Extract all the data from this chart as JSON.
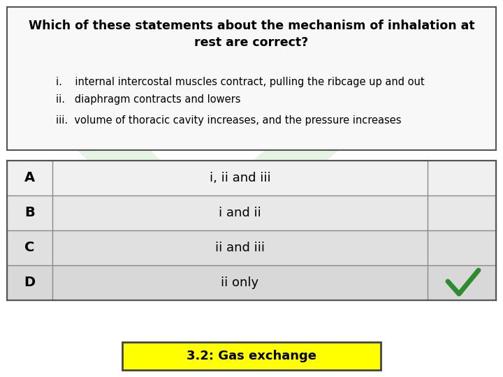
{
  "title_line1": "Which of these statements about the mechanism of inhalation at",
  "title_line2": "rest are correct?",
  "stmt1": "i.    internal intercostal muscles contract, pulling the ribcage up and out",
  "stmt2": "ii.   diaphragm contracts and lowers",
  "stmt3": "iii.  volume of thoracic cavity increases, and the pressure increases",
  "options": [
    "A",
    "B",
    "C",
    "D"
  ],
  "option_texts": [
    "i, ii and iii",
    "i and ii",
    "ii and iii",
    "ii only"
  ],
  "correct_index": 3,
  "footer_text": "3.2: Gas exchange",
  "bg_color": "#ffffff",
  "box_border_color": "#555555",
  "answer_box_bg": "#ffff00",
  "green_check_color": "#2e8b2e",
  "watermark_green": "#a8d8a8",
  "row_bg_A": "#f0f0f0",
  "row_bg_B": "#e8e8e8",
  "row_bg_C": "#e0e0e0",
  "row_bg_D": "#d8d8d8",
  "title_fontsize": 12.5,
  "body_fontsize": 10.5,
  "table_letter_fontsize": 14,
  "table_text_fontsize": 13,
  "footer_fontsize": 13
}
